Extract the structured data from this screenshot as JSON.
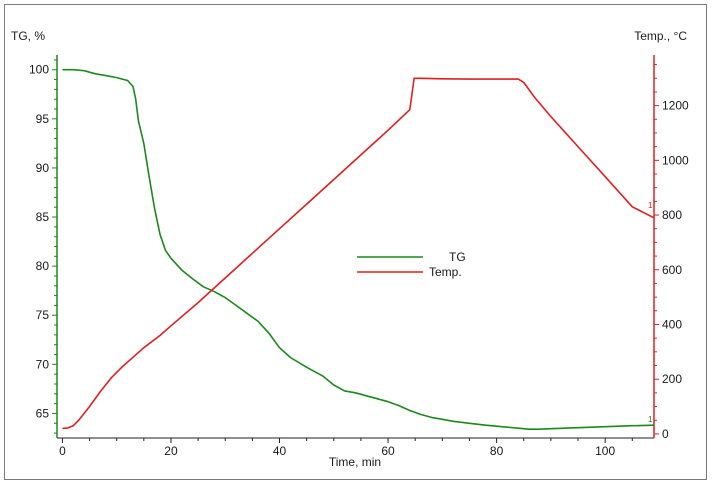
{
  "chart_data": {
    "type": "line",
    "left_axis_title": "TG, %",
    "right_axis_title": "Temp., °C",
    "xlabel": "Time, min",
    "xlim": [
      -1,
      109
    ],
    "ylim_left": [
      62.5,
      101.5
    ],
    "ylim_right": [
      -15,
      1385
    ],
    "x_ticks": [
      0,
      20,
      40,
      60,
      80,
      100
    ],
    "y_left_ticks": [
      65,
      70,
      75,
      80,
      85,
      90,
      95,
      100
    ],
    "y_right_ticks": [
      0,
      200,
      400,
      600,
      800,
      1000,
      1200
    ],
    "colors": {
      "tg": "#1a8a1a",
      "temp": "#e02020",
      "left_axis": "#1a8a1a",
      "right_axis": "#e02020"
    },
    "legend": {
      "position": "center",
      "entries": [
        {
          "label": "TG",
          "color": "#1a8a1a"
        },
        {
          "label": "Temp.",
          "color": "#e02020"
        }
      ]
    },
    "end_markers": {
      "tg": "1",
      "temp": "1"
    },
    "series": [
      {
        "name": "TG",
        "axis": "left",
        "x": [
          0,
          2,
          4,
          6,
          8,
          10,
          12,
          13,
          13.5,
          14,
          15,
          16,
          17,
          18,
          19,
          20,
          22,
          24,
          26,
          28,
          30,
          32,
          34,
          36,
          38,
          40,
          42,
          45,
          48,
          50,
          52,
          54,
          56,
          58,
          60,
          62,
          64,
          66,
          68,
          70,
          72,
          75,
          78,
          80,
          82,
          84,
          86,
          88,
          90,
          95,
          100,
          105,
          109
        ],
        "values": [
          100,
          100,
          99.9,
          99.6,
          99.4,
          99.2,
          98.9,
          98.3,
          97,
          94.8,
          92.5,
          89,
          85.8,
          83.2,
          81.6,
          80.8,
          79.6,
          78.7,
          77.9,
          77.4,
          76.8,
          76,
          75.2,
          74.4,
          73.2,
          71.7,
          70.7,
          69.7,
          68.8,
          67.9,
          67.3,
          67.1,
          66.8,
          66.5,
          66.2,
          65.8,
          65.3,
          64.9,
          64.6,
          64.4,
          64.2,
          64,
          63.8,
          63.7,
          63.6,
          63.5,
          63.4,
          63.4,
          63.45,
          63.55,
          63.65,
          63.75,
          63.8
        ]
      },
      {
        "name": "Temp.",
        "axis": "right",
        "x": [
          0,
          1,
          2,
          3,
          5,
          7,
          9,
          11,
          13,
          15,
          18,
          20,
          25,
          30,
          35,
          40,
          45,
          50,
          55,
          60,
          64,
          64.8,
          66,
          70,
          75,
          80,
          84,
          85,
          87,
          90,
          95,
          100,
          105,
          109
        ],
        "values": [
          20,
          22,
          30,
          50,
          100,
          155,
          205,
          245,
          280,
          315,
          360,
          395,
          480,
          570,
          660,
          750,
          840,
          930,
          1020,
          1110,
          1185,
          1300,
          1300,
          1298,
          1297,
          1297,
          1297,
          1285,
          1230,
          1160,
          1050,
          940,
          830,
          790
        ]
      }
    ]
  }
}
